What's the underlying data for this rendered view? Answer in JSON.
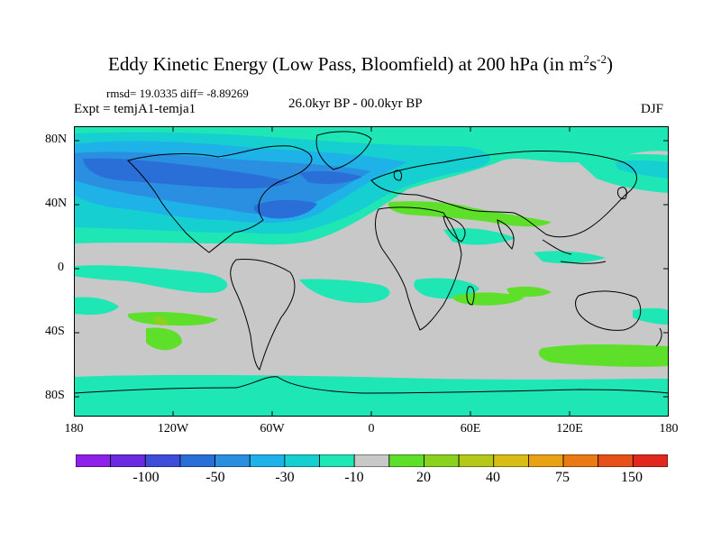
{
  "title_main": "Eddy Kinetic Energy (Low Pass, Bloomfield) at 200 hPa (in m",
  "title_sup1": "2",
  "title_mid": "s",
  "title_sup2": "-2",
  "title_end": ")",
  "stats": "rmsd= 19.0335 diff= -8.89269",
  "expt": "Expt = temjA1-temja1",
  "center_label": "26.0kyr BP - 00.0kyr BP",
  "season": "DJF",
  "lat_labels": [
    "80N",
    "40N",
    "0",
    "40S",
    "80S"
  ],
  "lon_labels": [
    "180",
    "120W",
    "60W",
    "0",
    "60E",
    "120E",
    "180"
  ],
  "colorbar": {
    "colors": [
      "#8f20e8",
      "#6a2ae0",
      "#3e4ed8",
      "#2a6ed8",
      "#2a8fe0",
      "#1fb2e8",
      "#15cfd0",
      "#1ee6b4",
      "#c8c8c8",
      "#5ee02a",
      "#8ad21e",
      "#b4c81a",
      "#d8be14",
      "#e8a014",
      "#ec7a14",
      "#e8501a",
      "#e0281e"
    ],
    "labels": [
      "-100",
      "-50",
      "-30",
      "-10",
      "20",
      "40",
      "75",
      "150"
    ]
  },
  "palette": {
    "background": "#c8c8c8",
    "cyan": "#1ee6b4",
    "teal": "#15cfd0",
    "light_blue": "#1fb2e8",
    "mid_blue": "#2a8fe0",
    "blue": "#2a6ed8",
    "green": "#5ee02a",
    "yellow_green": "#8ad21e",
    "coast": "#000000"
  }
}
